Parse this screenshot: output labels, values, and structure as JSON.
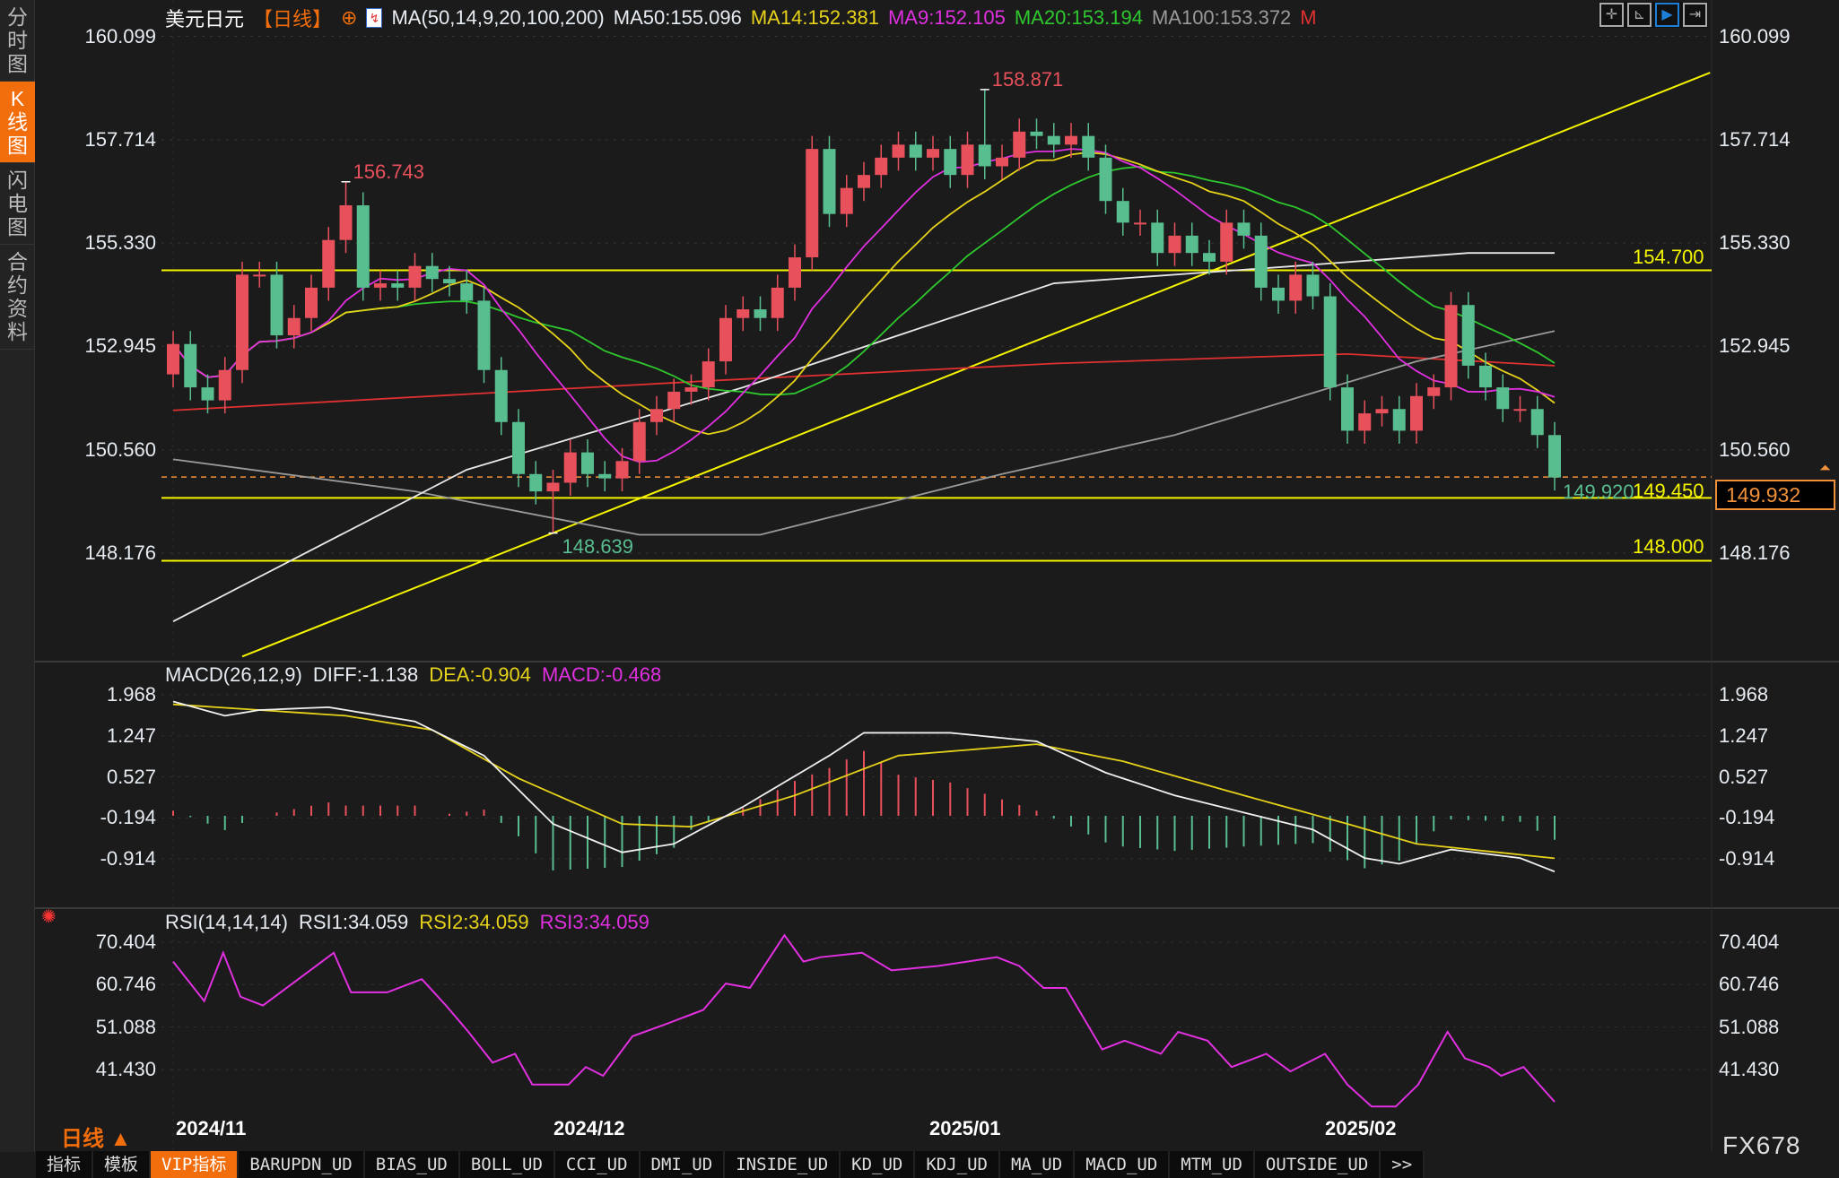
{
  "sidebar": {
    "items": [
      {
        "label": "分时图",
        "active": false
      },
      {
        "label": "K线图",
        "active": true
      },
      {
        "label": "闪电图",
        "active": false
      },
      {
        "label": "合约资料",
        "active": false
      }
    ]
  },
  "header": {
    "symbol": "美元日元",
    "period_tag": "【日线】",
    "ma_params": "MA(50,14,9,20,100,200)",
    "ma50": "MA50:155.096",
    "ma14": "MA14:152.381",
    "ma9": "MA9:152.105",
    "ma20": "MA20:153.194",
    "ma100": "MA100:153.372",
    "m": "M"
  },
  "toolbar": {
    "icons": [
      "crosshair-icon",
      "zoom-range-icon",
      "play-icon",
      "move-right-icon"
    ],
    "active": "play-icon"
  },
  "price_axis": [
    "160.099",
    "157.714",
    "155.330",
    "152.945",
    "150.560",
    "148.176"
  ],
  "macd": {
    "title": "MACD(26,12,9)",
    "diff": "DIFF:-1.138",
    "dea": "DEA:-0.904",
    "macd": "MACD:-0.468",
    "axis": [
      "1.968",
      "1.247",
      "0.527",
      "-0.194",
      "-0.914"
    ]
  },
  "rsi": {
    "title": "RSI(14,14,14)",
    "rsi1": "RSI1:34.059",
    "rsi2": "RSI2:34.059",
    "rsi3": "RSI3:34.059",
    "axis": [
      "70.404",
      "60.746",
      "51.088",
      "41.430"
    ]
  },
  "dates": [
    "2024/11",
    "2024/12",
    "2025/01",
    "2025/02"
  ],
  "period_label": "日线 ▲",
  "brand": "FX678",
  "current_price": "149.932",
  "last_close_label": "149.920",
  "hlines": [
    {
      "label": "154.700",
      "value": 154.7
    },
    {
      "label": "149.450",
      "value": 149.45
    },
    {
      "label": "148.000",
      "value": 148.0
    }
  ],
  "annotations": [
    {
      "label": "156.743",
      "index": 10,
      "price": 156.743,
      "kind": "high"
    },
    {
      "label": "148.639",
      "index": 22,
      "price": 148.639,
      "kind": "low"
    },
    {
      "label": "158.871",
      "index": 47,
      "price": 158.871,
      "kind": "high"
    }
  ],
  "tabs": [
    {
      "label": "指标"
    },
    {
      "label": "模板"
    },
    {
      "label": "VIP指标",
      "active": true
    },
    {
      "label": "BARUPDN_UD"
    },
    {
      "label": "BIAS_UD"
    },
    {
      "label": "BOLL_UD"
    },
    {
      "label": "CCI_UD"
    },
    {
      "label": "DMI_UD"
    },
    {
      "label": "INSIDE_UD"
    },
    {
      "label": "KD_UD"
    },
    {
      "label": "KDJ_UD"
    },
    {
      "label": "MA_UD"
    },
    {
      "label": "MACD_UD"
    },
    {
      "label": "MTM_UD"
    },
    {
      "label": "OUTSIDE_UD"
    },
    {
      "label": ">>"
    }
  ],
  "colors": {
    "up": "#e8505b",
    "down": "#58bd8f",
    "ma50": "#e8e8e8",
    "ma14": "#e6d21a",
    "ma9": "#e030e0",
    "ma20": "#2ec82e",
    "ma100": "#9a9a9a",
    "ma200": "#e03030",
    "hline": "#f5f500",
    "accent": "#f26d0c"
  },
  "chart_data": {
    "type": "candlestick",
    "x_ticks": [
      "2024/11",
      "2024/12",
      "2025/01",
      "2025/02"
    ],
    "ylim": [
      145.5,
      160.099
    ],
    "closes": [
      153.0,
      152.0,
      151.7,
      152.4,
      154.6,
      154.6,
      153.2,
      153.6,
      154.3,
      155.4,
      156.2,
      154.3,
      154.4,
      154.3,
      154.8,
      154.5,
      154.4,
      154.0,
      152.4,
      151.2,
      150.0,
      149.6,
      149.8,
      150.5,
      150.0,
      149.9,
      150.3,
      151.2,
      151.5,
      151.9,
      152.0,
      152.6,
      153.6,
      153.8,
      153.6,
      154.3,
      155.0,
      157.5,
      156.0,
      156.6,
      156.9,
      157.3,
      157.6,
      157.3,
      157.5,
      156.9,
      157.6,
      157.1,
      157.3,
      157.9,
      157.8,
      157.6,
      157.8,
      157.3,
      156.3,
      155.8,
      155.8,
      155.1,
      155.5,
      155.1,
      154.9,
      155.8,
      155.5,
      154.3,
      154.0,
      154.6,
      154.1,
      152.0,
      151.0,
      151.4,
      151.5,
      151.0,
      151.8,
      152.0,
      153.9,
      152.5,
      152.0,
      151.5,
      151.5,
      150.9,
      149.92
    ],
    "first_open": 152.3,
    "ma50": [
      [
        0,
        146.6
      ],
      [
        17,
        150.1
      ],
      [
        33,
        152.0
      ],
      [
        51,
        154.4
      ],
      [
        65,
        154.8
      ],
      [
        75,
        155.1
      ],
      [
        80,
        155.1
      ]
    ],
    "ma100": [
      [
        0,
        150.34
      ],
      [
        14,
        149.6
      ],
      [
        27,
        148.6
      ],
      [
        34,
        148.6
      ],
      [
        48,
        150.0
      ],
      [
        58,
        150.9
      ],
      [
        72,
        152.6
      ],
      [
        80,
        153.3
      ]
    ],
    "ma200": [
      [
        0,
        151.47
      ],
      [
        31,
        152.15
      ],
      [
        51,
        152.55
      ],
      [
        68,
        152.77
      ],
      [
        80,
        152.5
      ]
    ],
    "trendline": [
      [
        4,
        145.79
      ],
      [
        89,
        159.26
      ]
    ],
    "macd_diff": [
      [
        0,
        1.85
      ],
      [
        3,
        1.6
      ],
      [
        5,
        1.7
      ],
      [
        9,
        1.75
      ],
      [
        14,
        1.5
      ],
      [
        18,
        0.9
      ],
      [
        22,
        -0.3
      ],
      [
        26,
        -0.8
      ],
      [
        29,
        -0.65
      ],
      [
        33,
        0.0
      ],
      [
        38,
        0.9
      ],
      [
        40,
        1.3
      ],
      [
        45,
        1.3
      ],
      [
        50,
        1.15
      ],
      [
        54,
        0.6
      ],
      [
        58,
        0.2
      ],
      [
        62,
        -0.1
      ],
      [
        66,
        -0.4
      ],
      [
        69,
        -0.9
      ],
      [
        71,
        -1.0
      ],
      [
        74,
        -0.75
      ],
      [
        78,
        -0.9
      ],
      [
        80,
        -1.138
      ]
    ],
    "macd_dea": [
      [
        0,
        1.8
      ],
      [
        10,
        1.6
      ],
      [
        15,
        1.35
      ],
      [
        20,
        0.5
      ],
      [
        26,
        -0.3
      ],
      [
        30,
        -0.35
      ],
      [
        36,
        0.2
      ],
      [
        42,
        0.9
      ],
      [
        50,
        1.1
      ],
      [
        55,
        0.8
      ],
      [
        62,
        0.2
      ],
      [
        68,
        -0.3
      ],
      [
        72,
        -0.65
      ],
      [
        80,
        -0.904
      ]
    ],
    "macd_ylim": [
      -1.3,
      1.968
    ],
    "rsi": [
      [
        0,
        66
      ],
      [
        1.8,
        57
      ],
      [
        2.9,
        68
      ],
      [
        3.9,
        58
      ],
      [
        5.2,
        56
      ],
      [
        9.3,
        68
      ],
      [
        10.3,
        59
      ],
      [
        12.4,
        59
      ],
      [
        14.4,
        62
      ],
      [
        15.8,
        56
      ],
      [
        17.1,
        50
      ],
      [
        18.5,
        43
      ],
      [
        19.8,
        45
      ],
      [
        20.8,
        38
      ],
      [
        22.9,
        38
      ],
      [
        23.9,
        42
      ],
      [
        24.9,
        40
      ],
      [
        26.6,
        49
      ],
      [
        28.7,
        52
      ],
      [
        30.7,
        55
      ],
      [
        32,
        61
      ],
      [
        33.4,
        60
      ],
      [
        35.4,
        72
      ],
      [
        36.5,
        66
      ],
      [
        37.5,
        67
      ],
      [
        39.9,
        68
      ],
      [
        41.6,
        64
      ],
      [
        44.3,
        65
      ],
      [
        47.7,
        67
      ],
      [
        49,
        65
      ],
      [
        50.4,
        60
      ],
      [
        51.7,
        60
      ],
      [
        53.8,
        46
      ],
      [
        55.1,
        48
      ],
      [
        57.2,
        45
      ],
      [
        58.2,
        50
      ],
      [
        59.9,
        48
      ],
      [
        61.3,
        42
      ],
      [
        63.3,
        45
      ],
      [
        64.7,
        41
      ],
      [
        66.7,
        45
      ],
      [
        68,
        38
      ],
      [
        69.4,
        33
      ],
      [
        70.8,
        33
      ],
      [
        72.1,
        38
      ],
      [
        73.8,
        50
      ],
      [
        74.8,
        44
      ],
      [
        76.2,
        42
      ],
      [
        76.9,
        40
      ],
      [
        78.2,
        42
      ],
      [
        80,
        34.059
      ]
    ],
    "rsi_ylim": [
      32,
      70.404
    ]
  }
}
